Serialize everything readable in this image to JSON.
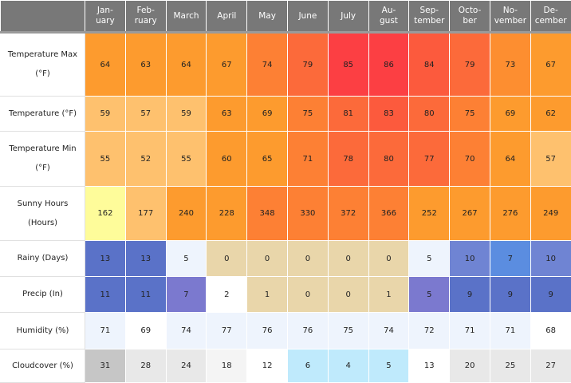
{
  "months": [
    "Jan-\nuary",
    "Feb-\nruary",
    "March",
    "April",
    "May",
    "June",
    "July",
    "Au-\ngust",
    "Sep-\ntember",
    "Octo-\nber",
    "No-\nvember",
    "De-\ncember"
  ],
  "rows": [
    {
      "label": "Temperature Max\n(°F)",
      "values": [
        "64",
        "63",
        "64",
        "67",
        "74",
        "79",
        "85",
        "86",
        "84",
        "79",
        "73",
        "67"
      ],
      "colors": [
        "#fd9b2e",
        "#fd9b2e",
        "#fd9b2e",
        "#fd9b2e",
        "#fd8034",
        "#fc6a3a",
        "#fc3f43",
        "#fc3f43",
        "#fc5a3d",
        "#fc6a3a",
        "#fd8e30",
        "#fd9b2e"
      ]
    },
    {
      "label": "Temperature (°F)",
      "values": [
        "59",
        "57",
        "59",
        "63",
        "69",
        "75",
        "81",
        "83",
        "80",
        "75",
        "69",
        "62"
      ],
      "colors": [
        "#fec16e",
        "#fec16e",
        "#fec16e",
        "#fd9b2e",
        "#fd9b2e",
        "#fd8034",
        "#fc6a3a",
        "#fc5a3d",
        "#fc6a3a",
        "#fd8034",
        "#fd9b2e",
        "#fd9b2e"
      ]
    },
    {
      "label": "Temperature Min\n(°F)",
      "values": [
        "55",
        "52",
        "55",
        "60",
        "65",
        "71",
        "78",
        "80",
        "77",
        "70",
        "64",
        "57"
      ],
      "colors": [
        "#fec16e",
        "#fec16e",
        "#fec16e",
        "#fd9b2e",
        "#fd9b2e",
        "#fd8034",
        "#fc6a3a",
        "#fc6a3a",
        "#fc6a3a",
        "#fd8034",
        "#fd9b2e",
        "#fec16e"
      ]
    },
    {
      "label": "Sunny Hours\n(Hours)",
      "values": [
        "162",
        "177",
        "240",
        "228",
        "348",
        "330",
        "372",
        "366",
        "252",
        "267",
        "276",
        "249"
      ],
      "colors": [
        "#fefc9a",
        "#fec16e",
        "#fd9b2e",
        "#fd9b2e",
        "#fd8034",
        "#fd8034",
        "#fd8034",
        "#fd8034",
        "#fd9b2e",
        "#fd9b2e",
        "#fd9b2e",
        "#fd9b2e"
      ]
    },
    {
      "label": "Rainy (Days)",
      "values": [
        "13",
        "13",
        "5",
        "0",
        "0",
        "0",
        "0",
        "0",
        "5",
        "10",
        "7",
        "10"
      ],
      "colors": [
        "#5a72c8",
        "#5a72c8",
        "#eef4fd",
        "#e9d6aa",
        "#e9d6aa",
        "#e9d6aa",
        "#e9d6aa",
        "#e9d6aa",
        "#eef4fd",
        "#6f84d3",
        "#5b8de0",
        "#6f84d3"
      ]
    },
    {
      "label": "Precip (In)",
      "values": [
        "11",
        "11",
        "7",
        "2",
        "1",
        "0",
        "0",
        "1",
        "5",
        "9",
        "9",
        "9"
      ],
      "colors": [
        "#5a72c8",
        "#5a72c8",
        "#7b79cf",
        "#ffffff",
        "#e9d6aa",
        "#e9d6aa",
        "#e9d6aa",
        "#e9d6aa",
        "#7b79cf",
        "#5a72c8",
        "#5a72c8",
        "#5a72c8"
      ]
    },
    {
      "label": "Humidity (%)",
      "values": [
        "71",
        "69",
        "74",
        "77",
        "76",
        "76",
        "75",
        "74",
        "72",
        "71",
        "71",
        "68"
      ],
      "colors": [
        "#eef4fd",
        "#ffffff",
        "#eef4fd",
        "#eef4fd",
        "#eef4fd",
        "#eef4fd",
        "#eef4fd",
        "#eef4fd",
        "#eef4fd",
        "#eef4fd",
        "#eef4fd",
        "#ffffff"
      ]
    },
    {
      "label": "Cloudcover (%)",
      "values": [
        "31",
        "28",
        "24",
        "18",
        "12",
        "6",
        "4",
        "5",
        "13",
        "20",
        "25",
        "27"
      ],
      "colors": [
        "#c6c6c6",
        "#e8e8e8",
        "#e8e8e8",
        "#f4f4f4",
        "#ffffff",
        "#bfeafc",
        "#bfeafc",
        "#bfeafc",
        "#ffffff",
        "#e8e8e8",
        "#e8e8e8",
        "#e8e8e8"
      ]
    }
  ]
}
